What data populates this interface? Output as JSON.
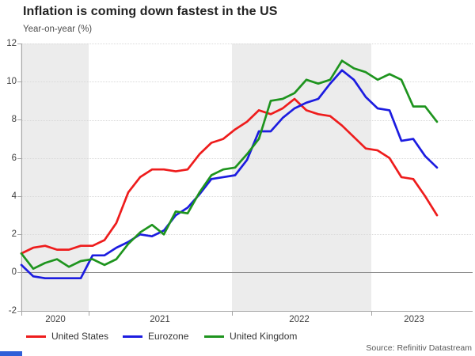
{
  "title": "Inflation is coming down fastest in the US",
  "subtitle": "Year-on-year (%)",
  "source": "Source: Refinitiv Datastream",
  "colors": {
    "united_states": "#ee1c1c",
    "eurozone": "#1c1ce0",
    "united_kingdom": "#1e941e",
    "shaded_band": "#ececec",
    "zero_line": "#8c8c8c",
    "axis": "#a6a6a6"
  },
  "chart_data": {
    "type": "line",
    "title": "Inflation is coming down fastest in the US",
    "ylabel": "Year-on-year (%)",
    "ylim": [
      -2,
      12
    ],
    "y_ticks": [
      "12",
      "10",
      "8",
      "6",
      "4",
      "2",
      "0",
      "-2"
    ],
    "x_tick_labels": [
      "2020",
      "2021",
      "2022",
      "2023"
    ],
    "x_frequency": "monthly",
    "x_start": "2020-07",
    "x_end": "2023-06",
    "grid": "horizontal-dotted",
    "shaded_year_bands": [
      "2020",
      "2022"
    ],
    "legend_position": "bottom",
    "series": [
      {
        "name": "United States",
        "color": "#ee1c1c",
        "values": [
          1.0,
          1.3,
          1.4,
          1.2,
          1.2,
          1.4,
          1.4,
          1.7,
          2.6,
          4.2,
          5.0,
          5.4,
          5.4,
          5.3,
          5.4,
          6.2,
          6.8,
          7.0,
          7.5,
          7.9,
          8.5,
          8.3,
          8.6,
          9.1,
          8.5,
          8.3,
          8.2,
          7.7,
          7.1,
          6.5,
          6.4,
          6.0,
          5.0,
          4.9,
          4.0,
          3.0
        ]
      },
      {
        "name": "Eurozone",
        "color": "#1c1ce0",
        "values": [
          0.4,
          -0.2,
          -0.3,
          -0.3,
          -0.3,
          -0.3,
          0.9,
          0.9,
          1.3,
          1.6,
          2.0,
          1.9,
          2.2,
          3.0,
          3.4,
          4.1,
          4.9,
          5.0,
          5.1,
          5.9,
          7.4,
          7.4,
          8.1,
          8.6,
          8.9,
          9.1,
          9.9,
          10.6,
          10.1,
          9.2,
          8.6,
          8.5,
          6.9,
          7.0,
          6.1,
          5.5
        ]
      },
      {
        "name": "United Kingdom",
        "color": "#1e941e",
        "values": [
          1.0,
          0.2,
          0.5,
          0.7,
          0.3,
          0.6,
          0.7,
          0.4,
          0.7,
          1.5,
          2.1,
          2.5,
          2.0,
          3.2,
          3.1,
          4.2,
          5.1,
          5.4,
          5.5,
          6.2,
          7.0,
          9.0,
          9.1,
          9.4,
          10.1,
          9.9,
          10.1,
          11.1,
          10.7,
          10.5,
          10.1,
          10.4,
          10.1,
          8.7,
          8.7,
          7.9
        ]
      }
    ]
  }
}
